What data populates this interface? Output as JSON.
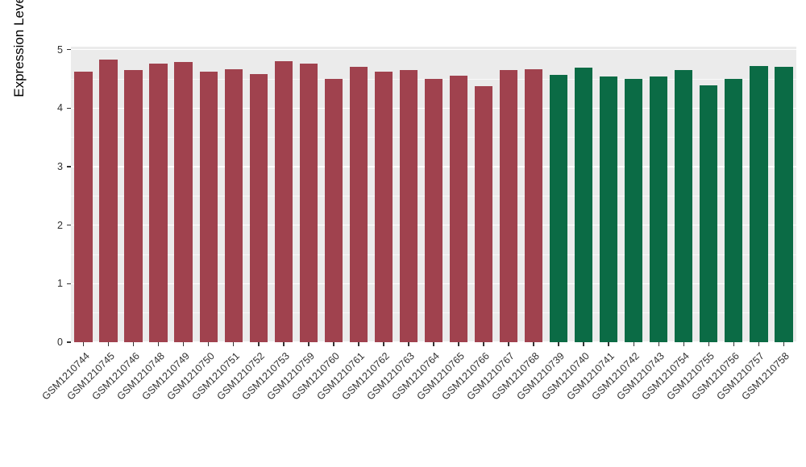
{
  "chart_data": {
    "type": "bar",
    "title": "",
    "xlabel": "",
    "ylabel": "Expression Level",
    "ylim": [
      0,
      5.05
    ],
    "yticks": [
      0,
      1,
      2,
      3,
      4,
      5
    ],
    "grid": "on",
    "legend": "none",
    "panel_bg": "#EBEBEB",
    "grid_color": "#FFFFFF",
    "categories": [
      "GSM1210744",
      "GSM1210745",
      "GSM1210746",
      "GSM1210748",
      "GSM1210749",
      "GSM1210750",
      "GSM1210751",
      "GSM1210752",
      "GSM1210753",
      "GSM1210759",
      "GSM1210760",
      "GSM1210761",
      "GSM1210762",
      "GSM1210763",
      "GSM1210764",
      "GSM1210765",
      "GSM1210766",
      "GSM1210767",
      "GSM1210768",
      "GSM1210739",
      "GSM1210740",
      "GSM1210741",
      "GSM1210742",
      "GSM1210743",
      "GSM1210754",
      "GSM1210755",
      "GSM1210756",
      "GSM1210757",
      "GSM1210758"
    ],
    "values": [
      4.62,
      4.83,
      4.65,
      4.76,
      4.79,
      4.63,
      4.66,
      4.58,
      4.8,
      4.76,
      4.5,
      4.71,
      4.63,
      4.65,
      4.5,
      4.55,
      4.38,
      4.65,
      4.66,
      4.57,
      4.69,
      4.54,
      4.5,
      4.54,
      4.65,
      4.39,
      4.5,
      4.72,
      4.7
    ],
    "bar_groups": [
      "red",
      "red",
      "red",
      "red",
      "red",
      "red",
      "red",
      "red",
      "red",
      "red",
      "red",
      "red",
      "red",
      "red",
      "red",
      "red",
      "red",
      "red",
      "red",
      "green",
      "green",
      "green",
      "green",
      "green",
      "green",
      "green",
      "green",
      "green",
      "green"
    ],
    "colors": {
      "red": "#A0424E",
      "green": "#0B6B45"
    }
  }
}
